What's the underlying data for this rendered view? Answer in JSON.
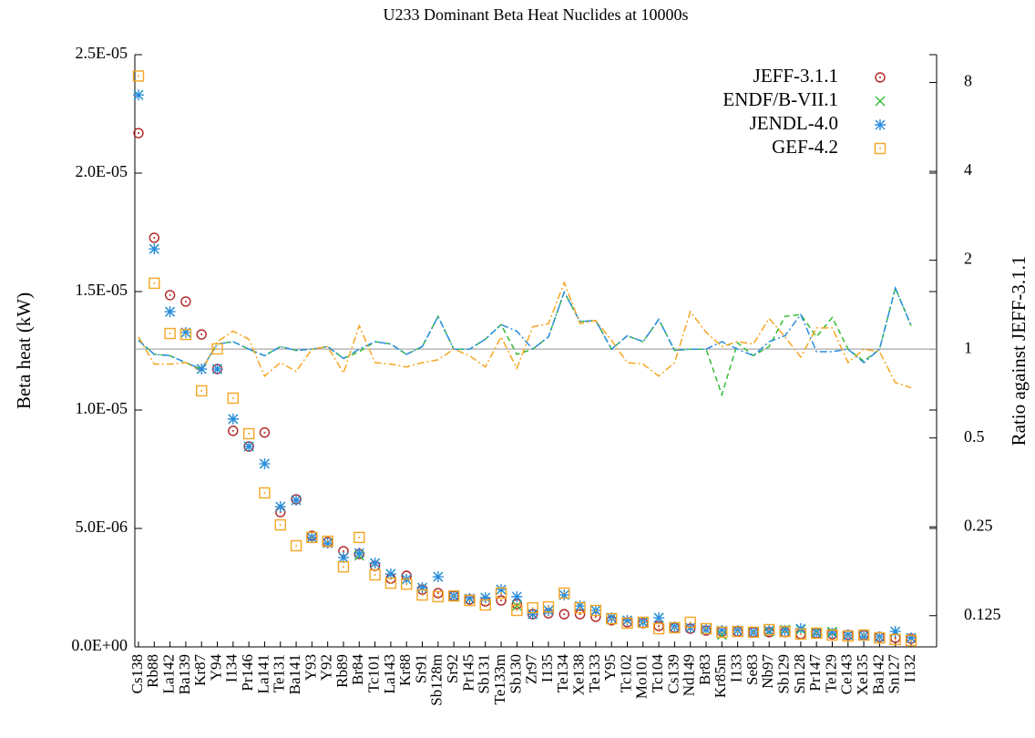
{
  "chart_data": {
    "type": "scatter",
    "title": "U233 Dominant Beta Heat Nuclides at 10000s",
    "ylabel": "Beta heat (kW)",
    "y2label": "Ratio against JEFF-3.1.1",
    "categories": [
      "Cs138",
      "Rb88",
      "La142",
      "Ba139",
      "Kr87",
      "Y94",
      "I134",
      "Pr146",
      "La141",
      "Te131",
      "Ba141",
      "Y93",
      "Y92",
      "Rb89",
      "Br84",
      "Tc101",
      "La143",
      "Kr88",
      "Sr91",
      "Sb128m",
      "Sr92",
      "Pr145",
      "Sb131",
      "Te133m",
      "Sb130",
      "Zr97",
      "I135",
      "Te134",
      "Xe138",
      "Te133",
      "Y95",
      "Tc102",
      "Mo101",
      "Tc104",
      "Cs139",
      "Nd149",
      "Br83",
      "Kr85m",
      "I133",
      "Se83",
      "Nb97",
      "Sb129",
      "Sn128",
      "Pr147",
      "Te129",
      "Ce143",
      "Xe135",
      "Ba142",
      "Sn127",
      "I132"
    ],
    "ylim": [
      0,
      2.5e-05
    ],
    "yticks": [
      {
        "value": 0,
        "label": "0.0E+00"
      },
      {
        "value": 5e-06,
        "label": "5.0E-06"
      },
      {
        "value": 1e-05,
        "label": "1.0E-05"
      },
      {
        "value": 1.5e-05,
        "label": "1.5E-05"
      },
      {
        "value": 2e-05,
        "label": "2.0E-05"
      },
      {
        "value": 2.5e-05,
        "label": "2.5E-05"
      }
    ],
    "y2lim": [
      0.098,
      9.94
    ],
    "y2scale": "log",
    "y2ticks": [
      0.125,
      0.25,
      0.5,
      1,
      2,
      4,
      8
    ],
    "reference_line": 1,
    "legend": "upper right",
    "series": [
      {
        "name": "JEFF-3.1.1",
        "color": "#b22222",
        "marker": "circle-dot",
        "values": [
          2.169e-05,
          1.727e-05,
          1.485e-05,
          1.458e-05,
          1.319e-05,
          1.173e-05,
          9.12e-06,
          8.46e-06,
          9.05e-06,
          5.69e-06,
          6.23e-06,
          4.69e-06,
          4.42e-06,
          4.04e-06,
          3.92e-06,
          3.42e-06,
          2.88e-06,
          3e-06,
          2.42e-06,
          2.27e-06,
          2.15e-06,
          2e-06,
          1.92e-06,
          1.96e-06,
          1.81e-06,
          1.38e-06,
          1.42e-06,
          1.38e-06,
          1.38e-06,
          1.27e-06,
          1.12e-06,
          1.04e-06,
          1e-06,
          8.8e-07,
          8.1e-07,
          7.7e-07,
          6.9e-07,
          6.5e-07,
          6.5e-07,
          6.2e-07,
          6.2e-07,
          6.2e-07,
          5.4e-07,
          5.8e-07,
          5.4e-07,
          5e-07,
          5e-07,
          4.2e-07,
          3.8e-07,
          3.5e-07
        ]
      },
      {
        "name": "ENDF/B-VII.1",
        "color": "#33bb33",
        "marker": "x",
        "values": [
          2.33e-05,
          1.68e-05,
          1.415e-05,
          1.327e-05,
          1.173e-05,
          1.173e-05,
          9.62e-06,
          8.46e-06,
          7.73e-06,
          5.92e-06,
          6.19e-06,
          4.62e-06,
          4.38e-06,
          3.77e-06,
          3.85e-06,
          3.54e-06,
          3.08e-06,
          2.85e-06,
          2.5e-06,
          2.96e-06,
          2.15e-06,
          2.04e-06,
          2.08e-06,
          2.42e-06,
          1.73e-06,
          1.38e-06,
          1.54e-06,
          2.19e-06,
          1.73e-06,
          1.54e-06,
          1.23e-06,
          1.12e-06,
          1.04e-06,
          1.23e-06,
          8.5e-07,
          8.1e-07,
          7.3e-07,
          5e-07,
          6.9e-07,
          6.2e-07,
          6.5e-07,
          7.3e-07,
          7.3e-07,
          6.2e-07,
          6.5e-07,
          5e-07,
          4.6e-07,
          4.2e-07,
          6.5e-07,
          3.8e-07
        ]
      },
      {
        "name": "JENDL-4.0",
        "color": "#2a8de0",
        "marker": "star",
        "values": [
          2.33e-05,
          1.68e-05,
          1.415e-05,
          1.327e-05,
          1.173e-05,
          1.173e-05,
          9.62e-06,
          8.46e-06,
          7.73e-06,
          5.92e-06,
          6.19e-06,
          4.62e-06,
          4.38e-06,
          3.77e-06,
          3.96e-06,
          3.54e-06,
          3.08e-06,
          2.85e-06,
          2.5e-06,
          2.96e-06,
          2.15e-06,
          2.04e-06,
          2.08e-06,
          2.42e-06,
          2.12e-06,
          1.38e-06,
          1.54e-06,
          2.19e-06,
          1.73e-06,
          1.54e-06,
          1.23e-06,
          1.12e-06,
          1.04e-06,
          1.23e-06,
          8.5e-07,
          8.1e-07,
          7.3e-07,
          6.9e-07,
          6.9e-07,
          6.2e-07,
          6.9e-07,
          6.9e-07,
          7.7e-07,
          5.8e-07,
          5.8e-07,
          5e-07,
          4.6e-07,
          4.2e-07,
          6.5e-07,
          3.8e-07
        ]
      },
      {
        "name": "GEF-4.2",
        "color": "#f5a623",
        "marker": "square-dot",
        "values": [
          2.41e-05,
          1.535e-05,
          1.323e-05,
          1.319e-05,
          1.081e-05,
          1.258e-05,
          1.05e-05,
          9e-06,
          6.5e-06,
          5.15e-06,
          4.27e-06,
          4.62e-06,
          4.46e-06,
          3.38e-06,
          4.62e-06,
          3.04e-06,
          2.69e-06,
          2.65e-06,
          2.19e-06,
          2.12e-06,
          2.15e-06,
          1.96e-06,
          1.77e-06,
          2.27e-06,
          1.54e-06,
          1.65e-06,
          1.69e-06,
          2.27e-06,
          1.65e-06,
          1.54e-06,
          1.19e-06,
          1e-06,
          1.04e-06,
          7.7e-07,
          8.1e-07,
          1.04e-06,
          7.7e-07,
          6.2e-07,
          6.5e-07,
          6.2e-07,
          7.3e-07,
          6.5e-07,
          5.4e-07,
          5.8e-07,
          5e-07,
          4.6e-07,
          5e-07,
          3.8e-07,
          3.1e-07,
          2.7e-07
        ]
      }
    ],
    "ratio_series": [
      {
        "color": "#33bb33",
        "dash": "6,4",
        "axis": "y2",
        "values": [
          1.07,
          0.96,
          0.95,
          0.9,
          0.855,
          1.04,
          1.06,
          1.0,
          0.95,
          1.02,
          0.99,
          1.0,
          1.02,
          0.93,
          0.98,
          1.06,
          1.04,
          0.96,
          1.02,
          1.29,
          1.0,
          1.0,
          1.08,
          1.21,
          0.96,
          1.0,
          1.1,
          1.56,
          1.24,
          1.25,
          1.0,
          1.11,
          1.06,
          1.26,
          0.99,
          1.0,
          1.0,
          0.7,
          1.05,
          0.95,
          1.02,
          1.29,
          1.31,
          1.1,
          1.28,
          1.0,
          0.91,
          1.0,
          1.61,
          1.2
        ]
      },
      {
        "color": "#2a8de0",
        "dash": "8,3,2,3",
        "axis": "y2",
        "values": [
          1.07,
          0.96,
          0.95,
          0.9,
          0.855,
          1.04,
          1.06,
          1.0,
          0.95,
          1.02,
          0.99,
          1.0,
          1.02,
          0.93,
          1.0,
          1.06,
          1.04,
          0.96,
          1.02,
          1.29,
          1.0,
          1.0,
          1.08,
          1.21,
          1.15,
          1.0,
          1.1,
          1.56,
          1.24,
          1.25,
          1.0,
          1.11,
          1.06,
          1.26,
          0.99,
          1.0,
          1.0,
          1.06,
          1.0,
          0.95,
          1.06,
          1.11,
          1.31,
          0.98,
          0.98,
          1.0,
          0.9,
          1.0,
          1.61,
          1.2
        ]
      },
      {
        "color": "#f5a623",
        "dash": "8,3,2,3",
        "axis": "y2",
        "values": [
          1.1,
          0.89,
          0.89,
          0.9,
          0.84,
          1.06,
          1.15,
          1.08,
          0.81,
          0.9,
          0.84,
          1.0,
          1.02,
          0.83,
          1.2,
          0.9,
          0.89,
          0.87,
          0.9,
          0.92,
          1.0,
          0.95,
          0.87,
          1.1,
          0.86,
          1.19,
          1.22,
          1.68,
          1.22,
          1.25,
          1.07,
          0.9,
          0.89,
          0.81,
          0.9,
          1.34,
          1.14,
          1.02,
          1.06,
          1.04,
          1.27,
          1.1,
          0.94,
          1.18,
          1.18,
          0.9,
          1.0,
          0.98,
          0.77,
          0.74
        ]
      }
    ]
  }
}
